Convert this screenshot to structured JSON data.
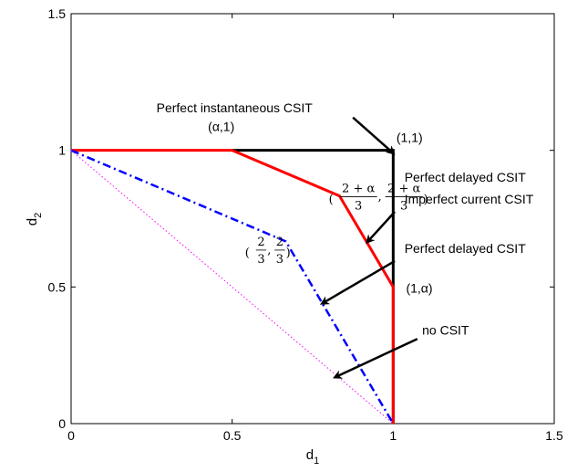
{
  "chart_data": {
    "type": "line",
    "xlabel": "d",
    "xlabel_sub": "1",
    "ylabel": "d",
    "ylabel_sub": "2",
    "xlim": [
      0,
      1.5
    ],
    "ylim": [
      0,
      1.5
    ],
    "xticks": [
      {
        "value": 0,
        "label": "0"
      },
      {
        "value": 0.5,
        "label": "0.5"
      },
      {
        "value": 1,
        "label": "1"
      },
      {
        "value": 1.5,
        "label": "1.5"
      }
    ],
    "yticks": [
      {
        "value": 0,
        "label": "0"
      },
      {
        "value": 0.5,
        "label": "0.5"
      },
      {
        "value": 1,
        "label": "1"
      },
      {
        "value": 1.5,
        "label": "1.5"
      }
    ],
    "grid": false,
    "legend": "none",
    "series": [
      {
        "id": "perfect-instantaneous",
        "color": "#000000",
        "style": "solid",
        "points": [
          [
            0.5,
            1
          ],
          [
            1,
            1
          ],
          [
            1,
            0
          ]
        ]
      },
      {
        "id": "imperfect-current",
        "color": "#ff0000",
        "style": "solid",
        "points": [
          [
            0,
            1
          ],
          [
            0.5,
            1
          ],
          [
            0.8333,
            0.8333
          ],
          [
            1,
            0.5
          ],
          [
            1,
            0
          ]
        ]
      },
      {
        "id": "perfect-delayed",
        "color": "#0000ff",
        "style": "dashdot",
        "points": [
          [
            0,
            1
          ],
          [
            0.6667,
            0.6667
          ],
          [
            1,
            0
          ]
        ]
      },
      {
        "id": "no-csit",
        "color": "#ff00ff",
        "style": "dotted",
        "points": [
          [
            0,
            1
          ],
          [
            1,
            0
          ]
        ]
      }
    ],
    "annotations": [
      {
        "id": "perfect-instantaneous-label",
        "text": "Perfect instantaneous CSIT",
        "text_at": [
          0.265,
          1.14
        ],
        "arrow_from": [
          0.875,
          1.12
        ],
        "arrow_to": [
          1,
          0.99
        ]
      },
      {
        "id": "perfect-delayed-imperfect-label-1",
        "text": "Perfect delayed CSIT",
        "text_at": [
          1.035,
          0.885
        ]
      },
      {
        "id": "perfect-delayed-imperfect-label-2",
        "text": "Imperfect current CSIT",
        "text_at": [
          1.035,
          0.805
        ],
        "arrow_from": [
          1.005,
          0.775
        ],
        "arrow_to": [
          0.92,
          0.665
        ]
      },
      {
        "id": "perfect-delayed-label",
        "text": "Perfect delayed CSIT",
        "text_at": [
          1.035,
          0.625
        ],
        "arrow_from": [
          1.005,
          0.595
        ],
        "arrow_to": [
          0.78,
          0.44
        ]
      },
      {
        "id": "no-csit-label",
        "text": "no CSIT",
        "text_at": [
          1.09,
          0.325
        ],
        "arrow_from": [
          1.075,
          0.31
        ],
        "arrow_to": [
          0.82,
          0.17
        ]
      },
      {
        "id": "point-alpha-1",
        "text": "(α,1)",
        "text_at": [
          0.425,
          1.07
        ]
      },
      {
        "id": "point-1-1",
        "text": "(1,1)",
        "text_at": [
          1.01,
          1.03
        ]
      },
      {
        "id": "point-1-alpha",
        "text": "(1,α)",
        "text_at": [
          1.04,
          0.48
        ]
      }
    ],
    "math_labels": [
      {
        "id": "point-two-plus-alpha",
        "numerator": "2 + α",
        "denominator": "3",
        "at": [
          0.8,
          0.83
        ]
      },
      {
        "id": "point-two-thirds",
        "numerator": "2",
        "denominator": "3",
        "at": [
          0.54,
          0.635
        ]
      }
    ]
  }
}
